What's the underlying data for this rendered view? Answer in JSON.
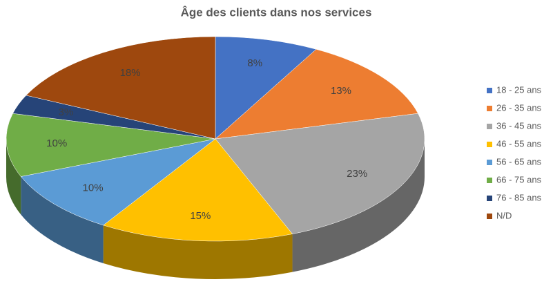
{
  "chart_data": {
    "type": "pie3d",
    "title": "Âge des clients dans nos services",
    "categories": [
      "18 - 25 ans",
      "26 - 35 ans",
      "36 - 45 ans",
      "46 - 55 ans",
      "56 - 65 ans",
      "66 - 75 ans",
      "76 - 85 ans",
      "N/D"
    ],
    "values": [
      8,
      13,
      23,
      15,
      10,
      10,
      3,
      18
    ],
    "value_labels": [
      "8%",
      "13%",
      "23%",
      "15%",
      "10%",
      "10%",
      "3%",
      "18%"
    ],
    "colors": [
      "#4472c4",
      "#ed7d31",
      "#a5a5a5",
      "#ffc000",
      "#5b9bd5",
      "#70ad47",
      "#264478",
      "#9e480e"
    ],
    "legend": "right"
  }
}
